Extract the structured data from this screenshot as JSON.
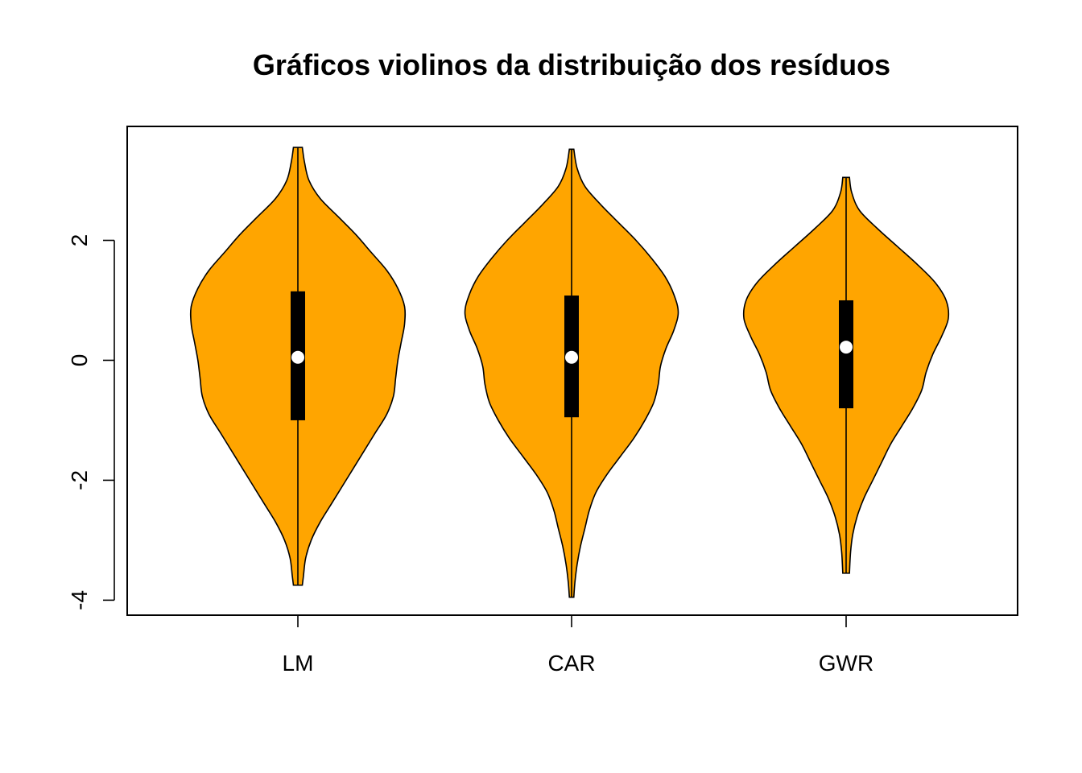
{
  "chart_data": {
    "type": "violin",
    "title": "Gráficos violinos da distribuição dos resíduos",
    "xlabel": "",
    "ylabel": "",
    "categories": [
      "LM",
      "CAR",
      "GWR"
    ],
    "ylim": [
      -4.25,
      3.9
    ],
    "y_ticks": [
      -4,
      -2,
      0,
      2
    ],
    "y_tick_labels": [
      "-4",
      "-2",
      "0",
      "2"
    ],
    "fill_color": "#FFA500",
    "box_color": "#000000",
    "median_color": "#FFFFFF",
    "grid": false,
    "violins": [
      {
        "category": "LM",
        "min": -3.75,
        "max": 3.55,
        "q1": -1.0,
        "median": 0.05,
        "q3": 1.15,
        "density_profile": [
          [
            3.55,
            0.04
          ],
          [
            3.3,
            0.06
          ],
          [
            3.0,
            0.1
          ],
          [
            2.7,
            0.2
          ],
          [
            2.4,
            0.36
          ],
          [
            2.1,
            0.52
          ],
          [
            1.8,
            0.66
          ],
          [
            1.5,
            0.8
          ],
          [
            1.2,
            0.9
          ],
          [
            0.9,
            0.96
          ],
          [
            0.6,
            0.96
          ],
          [
            0.3,
            0.93
          ],
          [
            0.0,
            0.9
          ],
          [
            -0.3,
            0.88
          ],
          [
            -0.6,
            0.86
          ],
          [
            -0.9,
            0.8
          ],
          [
            -1.2,
            0.7
          ],
          [
            -1.5,
            0.6
          ],
          [
            -1.8,
            0.5
          ],
          [
            -2.1,
            0.4
          ],
          [
            -2.4,
            0.3
          ],
          [
            -2.7,
            0.2
          ],
          [
            -3.0,
            0.12
          ],
          [
            -3.3,
            0.07
          ],
          [
            -3.6,
            0.05
          ],
          [
            -3.75,
            0.04
          ]
        ]
      },
      {
        "category": "CAR",
        "min": -3.95,
        "max": 3.52,
        "q1": -0.95,
        "median": 0.05,
        "q3": 1.08,
        "density_profile": [
          [
            3.52,
            0.02
          ],
          [
            3.2,
            0.05
          ],
          [
            2.9,
            0.12
          ],
          [
            2.6,
            0.26
          ],
          [
            2.3,
            0.42
          ],
          [
            2.0,
            0.58
          ],
          [
            1.7,
            0.72
          ],
          [
            1.4,
            0.84
          ],
          [
            1.1,
            0.92
          ],
          [
            0.8,
            0.96
          ],
          [
            0.5,
            0.92
          ],
          [
            0.2,
            0.85
          ],
          [
            -0.1,
            0.8
          ],
          [
            -0.4,
            0.78
          ],
          [
            -0.7,
            0.74
          ],
          [
            -1.0,
            0.66
          ],
          [
            -1.3,
            0.56
          ],
          [
            -1.6,
            0.44
          ],
          [
            -1.9,
            0.32
          ],
          [
            -2.2,
            0.22
          ],
          [
            -2.5,
            0.16
          ],
          [
            -2.8,
            0.12
          ],
          [
            -3.1,
            0.08
          ],
          [
            -3.4,
            0.05
          ],
          [
            -3.7,
            0.03
          ],
          [
            -3.95,
            0.02
          ]
        ]
      },
      {
        "category": "GWR",
        "min": -3.55,
        "max": 3.05,
        "q1": -0.8,
        "median": 0.22,
        "q3": 1.0,
        "density_profile": [
          [
            3.05,
            0.03
          ],
          [
            2.8,
            0.05
          ],
          [
            2.5,
            0.12
          ],
          [
            2.2,
            0.28
          ],
          [
            1.9,
            0.46
          ],
          [
            1.6,
            0.64
          ],
          [
            1.3,
            0.8
          ],
          [
            1.0,
            0.9
          ],
          [
            0.7,
            0.92
          ],
          [
            0.4,
            0.86
          ],
          [
            0.1,
            0.78
          ],
          [
            -0.2,
            0.72
          ],
          [
            -0.5,
            0.68
          ],
          [
            -0.8,
            0.6
          ],
          [
            -1.1,
            0.5
          ],
          [
            -1.4,
            0.4
          ],
          [
            -1.7,
            0.32
          ],
          [
            -2.0,
            0.24
          ],
          [
            -2.3,
            0.16
          ],
          [
            -2.6,
            0.1
          ],
          [
            -2.9,
            0.06
          ],
          [
            -3.2,
            0.04
          ],
          [
            -3.55,
            0.03
          ]
        ]
      }
    ]
  }
}
